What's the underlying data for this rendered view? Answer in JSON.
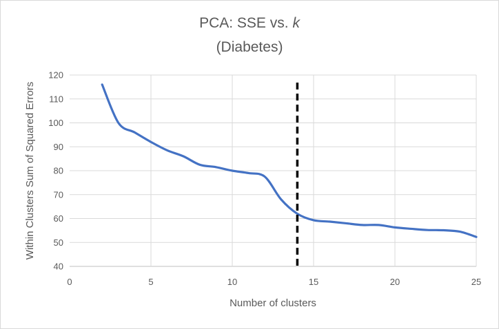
{
  "chart_data": {
    "type": "line",
    "title_main": "PCA: SSE vs. ",
    "title_italic": "k",
    "subtitle": "(Diabetes)",
    "xlabel": "Number of clusters",
    "ylabel": "Within Clusters Sum of Squared Errors",
    "xlim": [
      0,
      25
    ],
    "ylim": [
      40,
      120
    ],
    "x_ticks": [
      0,
      5,
      10,
      15,
      20,
      25
    ],
    "y_ticks": [
      40,
      50,
      60,
      70,
      80,
      90,
      100,
      110,
      120
    ],
    "grid": true,
    "series": [
      {
        "color": "#4472c4",
        "x": [
          2,
          3,
          4,
          5,
          6,
          7,
          8,
          9,
          10,
          11,
          12,
          13,
          14,
          15,
          16,
          17,
          18,
          19,
          20,
          21,
          22,
          23,
          24,
          25
        ],
        "y": [
          116,
          100,
          96,
          92,
          88.5,
          86,
          82.5,
          81.5,
          80,
          79,
          77.5,
          68,
          62,
          59.3,
          58.7,
          58,
          57.3,
          57.3,
          56.3,
          55.7,
          55.2,
          55.1,
          54.5,
          52.3
        ]
      }
    ],
    "reference_line": {
      "x": 14,
      "color": "#000000",
      "style": "dashed"
    }
  }
}
